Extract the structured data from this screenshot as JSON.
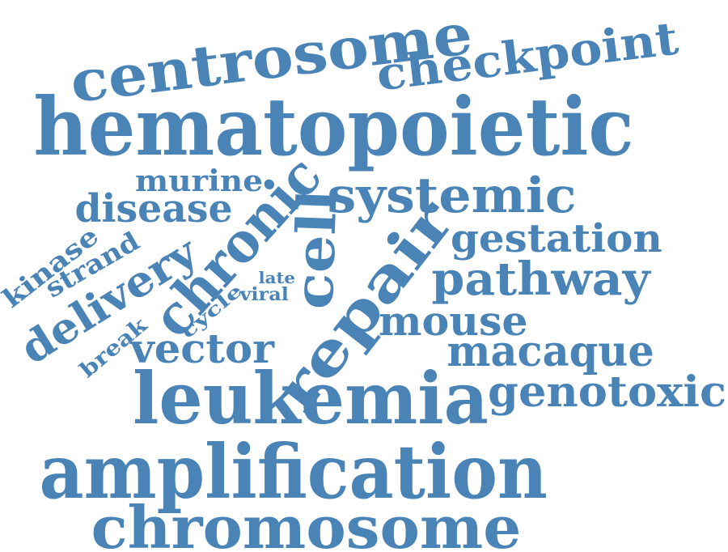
{
  "cloud": {
    "text_color": "#4a84b7",
    "background": "#ffffff",
    "words": [
      {
        "id": "centrosome",
        "text": "centrosome"
      },
      {
        "id": "checkpoint",
        "text": "checkpoint"
      },
      {
        "id": "hematopoietic",
        "text": "hematopoietic"
      },
      {
        "id": "murine",
        "text": "murine"
      },
      {
        "id": "disease",
        "text": "disease"
      },
      {
        "id": "chronic",
        "text": "chronic"
      },
      {
        "id": "systemic",
        "text": "systemic"
      },
      {
        "id": "kinase",
        "text": "kinase"
      },
      {
        "id": "strand",
        "text": "strand"
      },
      {
        "id": "delivery",
        "text": "delivery"
      },
      {
        "id": "cell",
        "text": "cell"
      },
      {
        "id": "repair",
        "text": "repair"
      },
      {
        "id": "gestation",
        "text": "gestation"
      },
      {
        "id": "pathway",
        "text": "pathway"
      },
      {
        "id": "late",
        "text": "late"
      },
      {
        "id": "cycle",
        "text": "cycle"
      },
      {
        "id": "viral",
        "text": "viral"
      },
      {
        "id": "break",
        "text": "break"
      },
      {
        "id": "mouse",
        "text": "mouse"
      },
      {
        "id": "vector",
        "text": "vector"
      },
      {
        "id": "macaque",
        "text": "macaque"
      },
      {
        "id": "leukemia",
        "text": "leukemia"
      },
      {
        "id": "genotoxic",
        "text": "genotoxic"
      },
      {
        "id": "amplification",
        "text": "amplification"
      },
      {
        "id": "chromosome",
        "text": "chromosome"
      }
    ]
  }
}
